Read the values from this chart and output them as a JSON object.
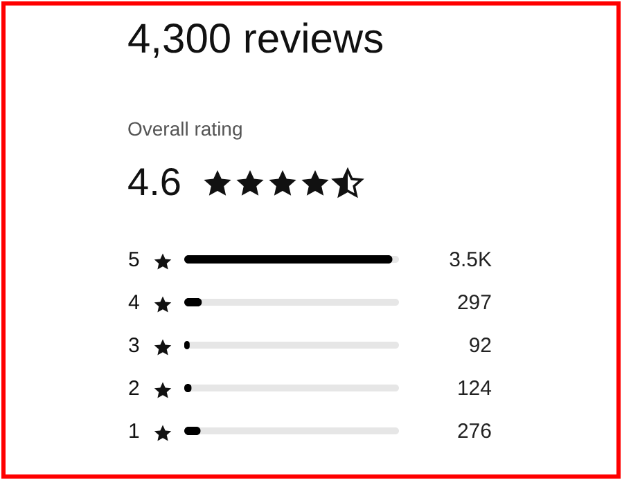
{
  "chart_data": {
    "type": "bar",
    "orientation": "horizontal",
    "title": "4,300 reviews",
    "subtitle": "Overall rating",
    "annotations": [
      "4.6"
    ],
    "categories": [
      "5",
      "4",
      "3",
      "2",
      "1"
    ],
    "values": [
      3500,
      297,
      92,
      124,
      276
    ],
    "value_labels": [
      "3.5K",
      "297",
      "92",
      "124",
      "276"
    ],
    "color": "#000000"
  }
}
